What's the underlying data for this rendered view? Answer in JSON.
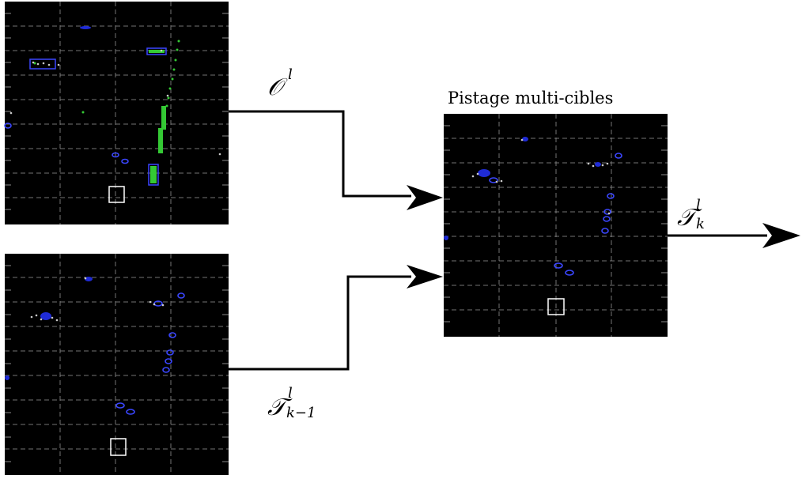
{
  "title": "Pistage multi-cibles",
  "labels": {
    "observations": "𝒪",
    "observations_sup": "l",
    "prev_tracks": "𝒯",
    "prev_tracks_sup": "l",
    "prev_tracks_sub": "k−1",
    "out_tracks": "𝒯",
    "out_tracks_sup": "l",
    "out_tracks_sub": "k"
  },
  "colors": {
    "background": "#000000",
    "detections": "#1f2bd6",
    "obstacle_points": "#34c934",
    "lidar_points": "#c9c9c9",
    "ego_box": "#ffffff",
    "grid": "#8a8a8a",
    "arrows": "#000000"
  }
}
